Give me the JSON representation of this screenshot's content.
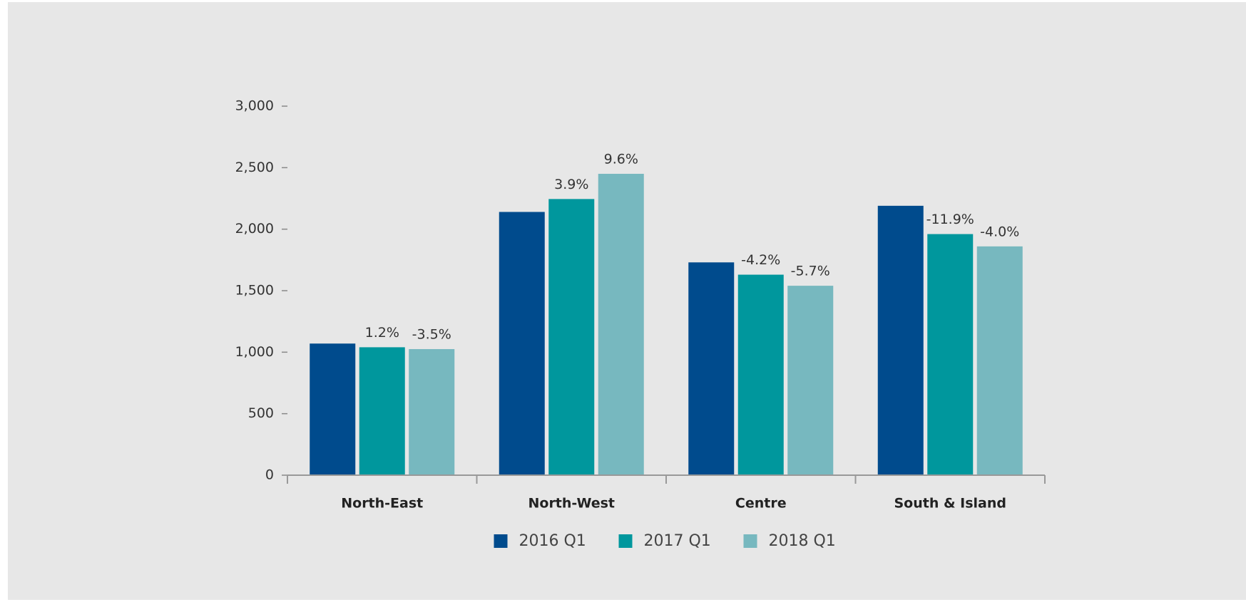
{
  "chart_data": {
    "type": "bar",
    "categories": [
      "North-East",
      "North-West",
      "Centre",
      "South & Island"
    ],
    "series": [
      {
        "name": "2016 Q1",
        "color": "#004b8d",
        "values": [
          1070,
          2140,
          1730,
          2190
        ]
      },
      {
        "name": "2017 Q1",
        "color": "#00979d",
        "values": [
          1040,
          2245,
          1630,
          1960
        ],
        "annotations": [
          "1.2%",
          "3.9%",
          "-4.2%",
          "-11.9%"
        ]
      },
      {
        "name": "2018 Q1",
        "color": "#77b8bf",
        "values": [
          1025,
          2450,
          1540,
          1860
        ],
        "annotations": [
          "-3.5%",
          "9.6%",
          "-5.7%",
          "-4.0%"
        ]
      }
    ],
    "ylim": [
      0,
      3000
    ],
    "yticks": [
      0,
      500,
      {
        "value": 1000,
        "label": "1,000"
      },
      {
        "value": 1500,
        "label": "1,500"
      },
      {
        "value": 2000,
        "label": "2,000"
      },
      {
        "value": 2500,
        "label": "2,500"
      },
      {
        "value": 3000,
        "label": "3,000"
      }
    ],
    "grid": false,
    "legend": "bottom"
  }
}
